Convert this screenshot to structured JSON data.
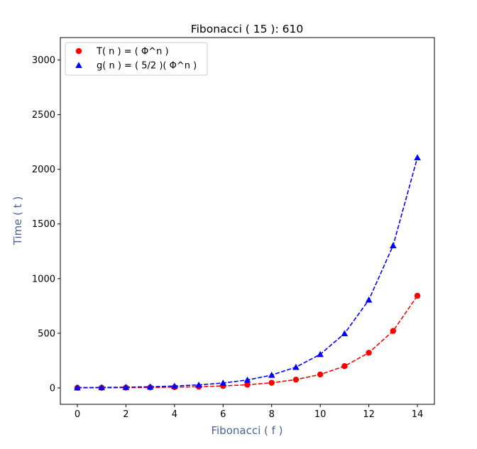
{
  "chart_data": {
    "type": "line",
    "title": "Fibonacci ( 15 ): 610",
    "xlabel": "Fibonacci ( f )",
    "ylabel": "Time ( t )",
    "label_color": "#4a6494",
    "xlim": [
      -0.7,
      14.7
    ],
    "ylim": [
      -150,
      3205
    ],
    "xticks": [
      0,
      2,
      4,
      6,
      8,
      10,
      12,
      14
    ],
    "yticks": [
      0,
      500,
      1000,
      1500,
      2000,
      2500,
      3000
    ],
    "grid": false,
    "legend_position": "top-left",
    "series": [
      {
        "name": "T( n ) = ( Φ^n )",
        "color": "#ff0000",
        "marker": "circle",
        "linestyle": "dashed",
        "x": [
          0,
          1,
          2,
          3,
          4,
          5,
          6,
          7,
          8,
          9,
          10,
          11,
          12,
          13,
          14
        ],
        "y": [
          1,
          1.618,
          2.618,
          4.236,
          6.854,
          11.09,
          17.944,
          29.034,
          46.979,
          76.013,
          122.992,
          199.005,
          321.997,
          521.002,
          842.998
        ]
      },
      {
        "name": "g( n ) = ( 5/2 )( Φ^n )",
        "color": "#0000ff",
        "marker": "triangle",
        "linestyle": "dashed",
        "x": [
          0,
          1,
          2,
          3,
          4,
          5,
          6,
          7,
          8,
          9,
          10,
          11,
          12,
          13,
          14
        ],
        "y": [
          2.5,
          4.045,
          6.545,
          10.59,
          17.135,
          27.725,
          44.86,
          72.585,
          117.448,
          190.033,
          307.48,
          497.513,
          804.993,
          1302.505,
          2107.495
        ]
      }
    ]
  }
}
